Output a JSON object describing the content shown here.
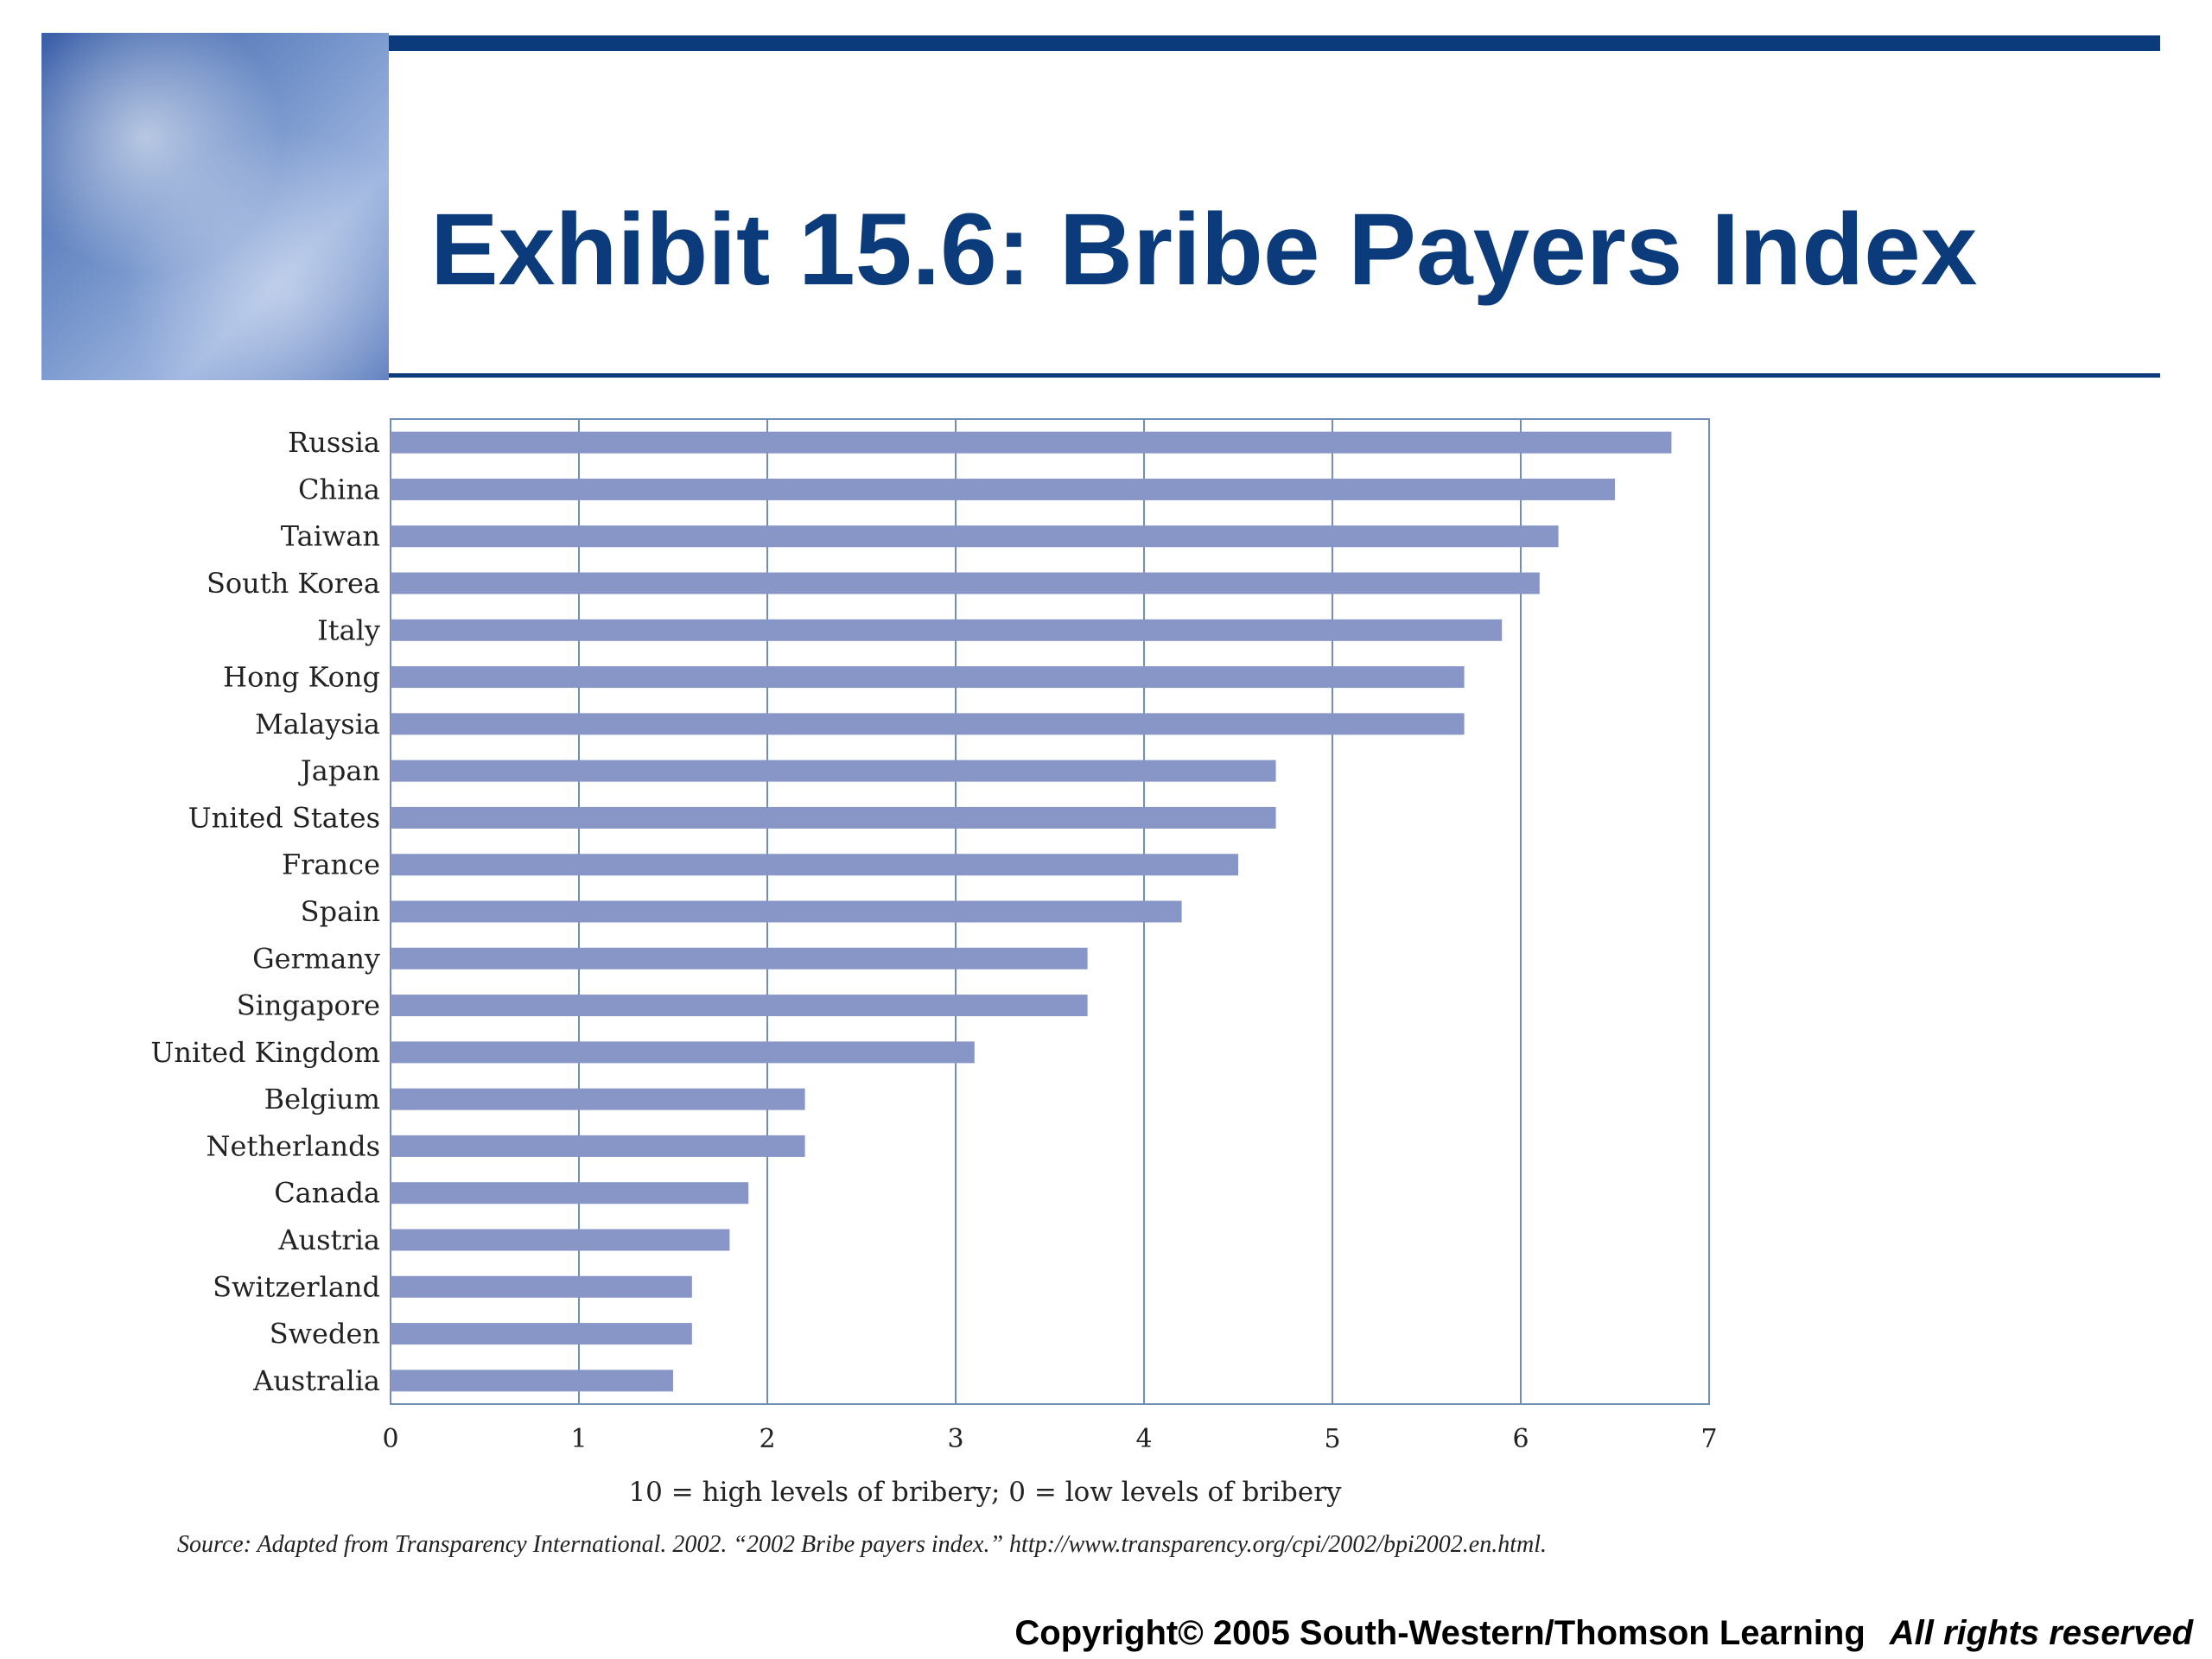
{
  "header": {
    "title": "Exhibit 15.6: Bribe Payers Index"
  },
  "chart_data": {
    "type": "bar",
    "orientation": "horizontal",
    "categories": [
      "Russia",
      "China",
      "Taiwan",
      "South Korea",
      "Italy",
      "Hong Kong",
      "Malaysia",
      "Japan",
      "United States",
      "France",
      "Spain",
      "Germany",
      "Singapore",
      "United Kingdom",
      "Belgium",
      "Netherlands",
      "Canada",
      "Austria",
      "Switzerland",
      "Sweden",
      "Australia"
    ],
    "values": [
      6.8,
      6.5,
      6.2,
      6.1,
      5.9,
      5.7,
      5.7,
      4.7,
      4.7,
      4.5,
      4.2,
      3.7,
      3.7,
      3.1,
      2.2,
      2.2,
      1.9,
      1.8,
      1.6,
      1.6,
      1.5
    ],
    "xlim": [
      0,
      7
    ],
    "xticks": [
      "0",
      "1",
      "2",
      "3",
      "4",
      "5",
      "6",
      "7"
    ],
    "xlabel": "10 = high levels of bribery; 0 = low levels of bribery",
    "grid": true,
    "bar_color": "#8796c6",
    "grid_color": "#6f8fb8"
  },
  "footer": {
    "source": "Source: Adapted from Transparency International. 2002. “2002 Bribe payers index.” http://www.transparency.org/cpi/2002/bpi2002.en.html.",
    "copyright": "Copyright© 2005 South-Western/Thomson Learning",
    "rights": "All rights reserved"
  },
  "colors": {
    "brand": "#0b3b7a"
  }
}
